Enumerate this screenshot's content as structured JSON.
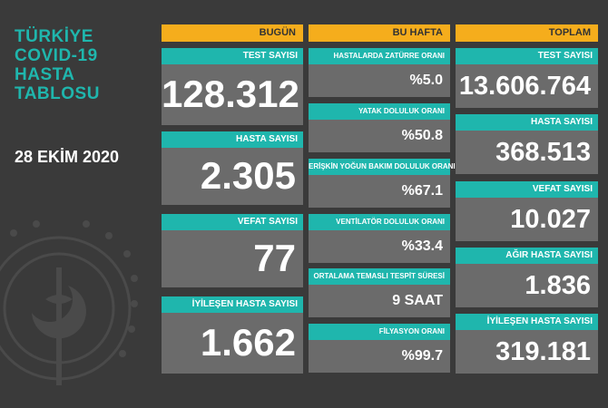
{
  "title_lines": [
    "TÜRKİYE",
    "COVID-19",
    "HASTA",
    "TABLOSU"
  ],
  "date": "28 EKİM 2020",
  "headers": {
    "today": "BUGÜN",
    "week": "BU HAFTA",
    "total": "TOPLAM"
  },
  "today": [
    {
      "label": "TEST SAYISI",
      "value": "128.312"
    },
    {
      "label": "HASTA SAYISI",
      "value": "2.305"
    },
    {
      "label": "VEFAT SAYISI",
      "value": "77"
    },
    {
      "label": "İYİLEŞEN HASTA SAYISI",
      "value": "1.662"
    }
  ],
  "week": [
    {
      "label": "HASTALARDA ZATÜRRE ORANI",
      "value": "%5.0"
    },
    {
      "label": "YATAK DOLULUK ORANI",
      "value": "%50.8"
    },
    {
      "label": "ERİŞKİN YOĞUN BAKIM DOLULUK ORANI",
      "value": "%67.1"
    },
    {
      "label": "VENTİLATÖR DOLULUK ORANI",
      "value": "%33.4"
    },
    {
      "label": "ORTALAMA TEMASLI TESPİT SÜRESİ",
      "value": "9 SAAT"
    },
    {
      "label": "FİLYASYON ORANI",
      "value": "%99.7"
    }
  ],
  "total": [
    {
      "label": "TEST SAYISI",
      "value": "13.606.764"
    },
    {
      "label": "HASTA SAYISI",
      "value": "368.513"
    },
    {
      "label": "VEFAT SAYISI",
      "value": "10.027"
    },
    {
      "label": "AĞIR HASTA SAYISI",
      "value": "1.836"
    },
    {
      "label": "İYİLEŞEN HASTA SAYISI",
      "value": "319.181"
    }
  ],
  "colors": {
    "background": "#3a3a3a",
    "header": "#f5ad1c",
    "label": "#1fb6ad",
    "value_bg": "#6b6b6b"
  },
  "icons": {
    "logo": "ministry-of-health-emblem"
  }
}
